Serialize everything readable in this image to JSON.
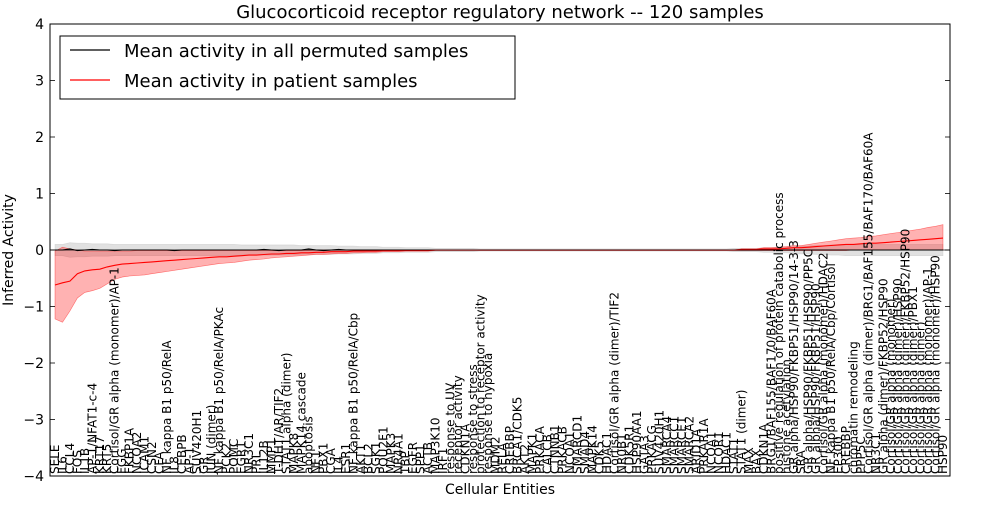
{
  "chart_data": {
    "type": "line",
    "title": "Glucocorticoid receptor regulatory network -- 120 samples",
    "xlabel": "Cellular Entities",
    "ylabel": "Inferred Activity",
    "ylim": [
      -4,
      4
    ],
    "yticks": [
      -4,
      -3,
      -2,
      -1,
      0,
      1,
      2,
      3,
      4
    ],
    "grid": false,
    "legend_position": "top-left",
    "colors": {
      "permuted": "#000000",
      "patient": "#ff0000",
      "permuted_band": "#bdbdbd",
      "patient_band": "#ff0000"
    },
    "legend": [
      "Mean activity in all permuted samples",
      "Mean activity in patient samples"
    ],
    "x_count": 120,
    "entity_labels": [
      "SELE",
      "IL6",
      "CCL4",
      "FOS",
      "IL1B",
      "AP-1/NFAT1-c-4",
      "KRT17",
      "KRT5",
      "Cortisol/GR alpha (monomer)/AP-1",
      "FGG",
      "FKBP1A",
      "NCOA2",
      "ICAM1",
      "CSN2",
      "CFA",
      "NF kappa B1 p50/RelA",
      "IL8",
      "CEBPB",
      "AP-1",
      "SUV420H1",
      "GR",
      "JUN (dimer)",
      "NF kappa B1 p50/RelA/PKAc",
      "PCK2",
      "POMC",
      "EGR1",
      "NR3C1",
      "PRL",
      "IL12B",
      "MMP1",
      "T-DHT/AR/TIF2",
      "STAT1 alpha (dimer)",
      "MAPK8",
      "MAPK14 cascade",
      "apoptosis",
      "NF1",
      "PBX1",
      "CGA",
      "IL4",
      "ESR1",
      "NF kappa B1 p50/RelA/Cbp",
      "AKT1",
      "BCL2",
      "SGK1",
      "POU2F1",
      "MAPK3",
      "NR4A1",
      "TBP",
      "EGFR",
      "SPP1",
      "ACTB",
      "MAP3K10",
      "IRF1",
      "response to UV",
      "receptor activity",
      "CDKN1A",
      "response to stress",
      "protection to receptor activity",
      "response to hypoxia",
      "MDM2",
      "RELA",
      "CREBBP",
      "BRCA1/CDK5",
      "AKT2",
      "MAPK1",
      "PRKACA",
      "CALCB",
      "CTNNB1",
      "PRKACB",
      "NCOA1",
      "SMARCD1",
      "SMAD4",
      "MAPK14",
      "CDK5",
      "HDAC1",
      "Cortisol/GR alpha (dimer)/TIF2",
      "NR0B1",
      "CDK5R1",
      "HSP90AA1",
      "GATA3",
      "PRKACG",
      "SUV420H1",
      "SMARCA4",
      "SMARCC1",
      "SMARCE1",
      "SMARCA2",
      "ARID1A",
      "PRKAR1A",
      "NCOA1",
      "NCOR1",
      "HDAC1",
      "STAT1",
      "STAT1 (dimer)",
      "MAX",
      "BAX",
      "CDKN1A",
      "BRG1/BAF155/BAF170/BAF60A",
      "positive regulation of protein catabolic process",
      "histone acetylation",
      "GR alpha/HSP90/FKBP51/HSP90/14-3-3",
      "SRA",
      "GR alpha/HSP90/FKBP51/HSP90/PP5C",
      "GR alpha/HSP90/FKBP51/HSP90",
      "Cortisol/GR alpha (monomer)/HDAC2",
      "NF kappa B1 p50/RelA/Cbp/Cortisol",
      "EP300",
      "CREBBP",
      "chromatin remodeling",
      "PPP5C",
      "Cortisol/GR alpha (dimer)/BRG1/BAF155/BAF170/BAF60A",
      "NR3C1",
      "GR alpha (dimer)/FKBP52/HSP90",
      "Cortisol/GR alpha (monomer)",
      "Cortisol/GR alpha (dimer)/HSP90",
      "Cortisol/GR alpha (dimer)/FKBP52/HSP90",
      "Cortisol/GR alpha (dimer)/PBX1",
      "Cortisol/GR alpha (dimer)",
      "Cortisol/GR alpha (monomer)/AP-1",
      "Cortisol/GR alpha (monomer)/HSP90",
      "HSP90"
    ],
    "series": [
      {
        "name": "Mean activity in all permuted samples",
        "values": [
          0.0,
          0.0,
          0.02,
          -0.01,
          0.0,
          0.01,
          0.0,
          0.0,
          -0.01,
          0.0,
          0.0,
          0.0,
          0.0,
          0.0,
          0.0,
          0.0,
          -0.01,
          0.0,
          0.0,
          0.0,
          0.0,
          0.0,
          0.0,
          0.0,
          0.0,
          0.0,
          0.0,
          0.0,
          0.01,
          0.0,
          -0.01,
          0.0,
          0.0,
          0.0,
          0.02,
          0.0,
          -0.01,
          0.0,
          0.01,
          0.0,
          0.0,
          0.0,
          0.0,
          0.0,
          0.0,
          0.0,
          0.0,
          0.0,
          0.0,
          0.0,
          0.0,
          0.0,
          0.0,
          0.0,
          0.0,
          0.0,
          0.0,
          0.0,
          0.0,
          0.0,
          0.0,
          0.0,
          0.0,
          0.0,
          0.0,
          0.0,
          0.0,
          0.0,
          0.0,
          0.0,
          0.0,
          0.0,
          0.0,
          0.0,
          0.0,
          0.0,
          0.0,
          0.0,
          0.0,
          0.0,
          0.0,
          0.0,
          0.0,
          0.0,
          0.0,
          0.0,
          0.0,
          0.0,
          0.0,
          0.0,
          0.0,
          0.0,
          0.0,
          0.0,
          0.0,
          0.0,
          0.0,
          0.0,
          0.0,
          0.0,
          0.0,
          0.0,
          0.0,
          0.0,
          0.0,
          0.0,
          0.0,
          0.0,
          0.0,
          0.0,
          0.0,
          0.0,
          0.0,
          0.0,
          0.0,
          0.0,
          0.0,
          0.0,
          0.0,
          0.0
        ],
        "lower": [
          -0.1,
          -0.1,
          -0.13,
          -0.12,
          -0.12,
          -0.11,
          -0.11,
          -0.11,
          -0.1,
          -0.1,
          -0.1,
          -0.1,
          -0.1,
          -0.1,
          -0.1,
          -0.1,
          -0.1,
          -0.1,
          -0.1,
          -0.1,
          -0.1,
          -0.1,
          -0.1,
          -0.1,
          -0.1,
          -0.09,
          -0.09,
          -0.09,
          -0.09,
          -0.09,
          -0.09,
          -0.09,
          -0.09,
          -0.08,
          -0.08,
          -0.08,
          -0.08,
          -0.08,
          -0.07,
          -0.07,
          -0.07,
          -0.06,
          -0.06,
          -0.06,
          -0.05,
          -0.05,
          -0.05,
          -0.04,
          -0.04,
          -0.04,
          -0.04,
          -0.03,
          -0.03,
          -0.03,
          -0.03,
          -0.03,
          -0.03,
          -0.02,
          -0.02,
          -0.02,
          -0.02,
          -0.02,
          -0.02,
          -0.02,
          -0.02,
          -0.02,
          -0.02,
          -0.02,
          -0.02,
          -0.02,
          -0.02,
          -0.02,
          -0.02,
          -0.02,
          -0.02,
          -0.02,
          -0.02,
          -0.02,
          -0.02,
          -0.02,
          -0.02,
          -0.02,
          -0.02,
          -0.02,
          -0.02,
          -0.02,
          -0.02,
          -0.02,
          -0.02,
          -0.02,
          -0.02,
          -0.03,
          -0.03,
          -0.03,
          -0.03,
          -0.04,
          -0.04,
          -0.05,
          -0.05,
          -0.06,
          -0.07,
          -0.07,
          -0.08,
          -0.08,
          -0.09,
          -0.09,
          -0.1,
          -0.1,
          -0.1,
          -0.1,
          -0.1,
          -0.1,
          -0.1,
          -0.1,
          -0.1,
          -0.1,
          -0.1,
          -0.1,
          -0.1,
          -0.1
        ],
        "upper": [
          0.1,
          0.1,
          0.13,
          0.12,
          0.12,
          0.11,
          0.11,
          0.11,
          0.1,
          0.1,
          0.1,
          0.1,
          0.1,
          0.1,
          0.1,
          0.1,
          0.1,
          0.1,
          0.1,
          0.1,
          0.1,
          0.1,
          0.1,
          0.1,
          0.1,
          0.09,
          0.09,
          0.09,
          0.09,
          0.09,
          0.09,
          0.09,
          0.09,
          0.08,
          0.08,
          0.08,
          0.08,
          0.08,
          0.07,
          0.07,
          0.07,
          0.06,
          0.06,
          0.06,
          0.05,
          0.05,
          0.05,
          0.04,
          0.04,
          0.04,
          0.04,
          0.03,
          0.03,
          0.03,
          0.03,
          0.03,
          0.03,
          0.02,
          0.02,
          0.02,
          0.02,
          0.02,
          0.02,
          0.02,
          0.02,
          0.02,
          0.02,
          0.02,
          0.02,
          0.02,
          0.02,
          0.02,
          0.02,
          0.02,
          0.02,
          0.02,
          0.02,
          0.02,
          0.02,
          0.02,
          0.02,
          0.02,
          0.02,
          0.02,
          0.02,
          0.02,
          0.02,
          0.02,
          0.02,
          0.02,
          0.02,
          0.03,
          0.03,
          0.03,
          0.03,
          0.04,
          0.04,
          0.05,
          0.05,
          0.06,
          0.07,
          0.07,
          0.08,
          0.08,
          0.09,
          0.09,
          0.1,
          0.1,
          0.1,
          0.1,
          0.1,
          0.1,
          0.1,
          0.1,
          0.1,
          0.1,
          0.1,
          0.1,
          0.1,
          0.1
        ]
      },
      {
        "name": "Mean activity in patient samples",
        "values": [
          -0.62,
          -0.58,
          -0.55,
          -0.42,
          -0.37,
          -0.35,
          -0.34,
          -0.3,
          -0.27,
          -0.25,
          -0.24,
          -0.23,
          -0.22,
          -0.21,
          -0.2,
          -0.19,
          -0.18,
          -0.17,
          -0.16,
          -0.15,
          -0.14,
          -0.13,
          -0.12,
          -0.12,
          -0.11,
          -0.1,
          -0.09,
          -0.09,
          -0.08,
          -0.07,
          -0.07,
          -0.06,
          -0.06,
          -0.05,
          -0.05,
          -0.04,
          -0.04,
          -0.03,
          -0.03,
          -0.03,
          -0.02,
          -0.02,
          -0.02,
          -0.02,
          -0.01,
          -0.01,
          -0.01,
          -0.01,
          -0.01,
          -0.01,
          -0.01,
          0.0,
          0.0,
          0.0,
          0.0,
          0.0,
          0.0,
          0.0,
          0.0,
          0.0,
          0.0,
          0.0,
          0.0,
          0.0,
          0.0,
          0.0,
          0.0,
          0.0,
          0.0,
          0.0,
          0.0,
          0.0,
          0.0,
          0.0,
          0.0,
          0.0,
          0.0,
          0.0,
          0.0,
          0.0,
          0.0,
          0.0,
          0.0,
          0.0,
          0.0,
          0.0,
          0.0,
          0.0,
          0.0,
          0.0,
          0.0,
          0.0,
          0.01,
          0.01,
          0.01,
          0.02,
          0.02,
          0.02,
          0.03,
          0.04,
          0.04,
          0.05,
          0.06,
          0.07,
          0.08,
          0.09,
          0.1,
          0.1,
          0.11,
          0.12,
          0.12,
          0.13,
          0.14,
          0.15,
          0.16,
          0.17,
          0.18,
          0.19,
          0.2,
          0.21
        ],
        "lower": [
          -1.22,
          -1.28,
          -1.08,
          -0.85,
          -0.75,
          -0.72,
          -0.68,
          -0.6,
          -0.52,
          -0.48,
          -0.46,
          -0.45,
          -0.44,
          -0.42,
          -0.4,
          -0.38,
          -0.36,
          -0.34,
          -0.32,
          -0.3,
          -0.28,
          -0.26,
          -0.24,
          -0.23,
          -0.22,
          -0.2,
          -0.18,
          -0.17,
          -0.16,
          -0.14,
          -0.13,
          -0.12,
          -0.11,
          -0.1,
          -0.09,
          -0.08,
          -0.08,
          -0.07,
          -0.06,
          -0.06,
          -0.05,
          -0.05,
          -0.04,
          -0.04,
          -0.03,
          -0.03,
          -0.03,
          -0.02,
          -0.02,
          -0.02,
          -0.02,
          -0.01,
          -0.01,
          -0.01,
          -0.01,
          -0.01,
          -0.01,
          -0.01,
          -0.01,
          -0.01,
          -0.01,
          -0.01,
          -0.01,
          -0.01,
          -0.01,
          -0.01,
          -0.01,
          -0.01,
          -0.01,
          -0.01,
          -0.01,
          -0.01,
          -0.01,
          -0.01,
          -0.01,
          -0.01,
          -0.01,
          -0.01,
          -0.01,
          -0.01,
          -0.01,
          -0.01,
          -0.01,
          -0.01,
          -0.01,
          -0.01,
          -0.01,
          -0.01,
          -0.01,
          -0.01,
          -0.01,
          -0.01,
          -0.01,
          -0.01,
          -0.01,
          -0.01,
          -0.01,
          -0.01,
          -0.01,
          -0.01,
          -0.01,
          -0.01,
          -0.01,
          -0.01,
          -0.01,
          -0.01,
          -0.01,
          0.0,
          0.0,
          0.0,
          0.0,
          0.0,
          0.0,
          0.0,
          0.0,
          0.0,
          0.0,
          0.0,
          0.0,
          0.0
        ],
        "upper": [
          -0.02,
          0.05,
          0.02,
          0.0,
          -0.02,
          -0.02,
          -0.02,
          -0.02,
          -0.02,
          -0.02,
          -0.02,
          -0.01,
          -0.01,
          -0.01,
          -0.01,
          -0.01,
          -0.01,
          -0.01,
          -0.01,
          -0.01,
          -0.01,
          -0.01,
          -0.01,
          -0.01,
          -0.01,
          -0.01,
          -0.01,
          -0.01,
          -0.01,
          -0.01,
          -0.01,
          -0.01,
          -0.01,
          -0.01,
          -0.01,
          0.0,
          0.0,
          0.0,
          0.0,
          0.0,
          0.0,
          0.0,
          0.0,
          0.0,
          0.0,
          0.0,
          0.0,
          0.0,
          0.0,
          0.0,
          0.0,
          0.0,
          0.0,
          0.0,
          0.0,
          0.0,
          0.0,
          0.0,
          0.0,
          0.0,
          0.0,
          0.0,
          0.0,
          0.0,
          0.0,
          0.0,
          0.0,
          0.0,
          0.0,
          0.0,
          0.0,
          0.0,
          0.0,
          0.0,
          0.0,
          0.0,
          0.0,
          0.0,
          0.0,
          0.0,
          0.0,
          0.0,
          0.0,
          0.0,
          0.0,
          0.0,
          0.0,
          0.0,
          0.0,
          0.0,
          0.0,
          0.0,
          0.02,
          0.02,
          0.02,
          0.04,
          0.04,
          0.05,
          0.06,
          0.08,
          0.08,
          0.1,
          0.12,
          0.14,
          0.16,
          0.18,
          0.2,
          0.21,
          0.22,
          0.24,
          0.25,
          0.27,
          0.29,
          0.31,
          0.33,
          0.35,
          0.37,
          0.4,
          0.42,
          0.45
        ]
      }
    ]
  }
}
